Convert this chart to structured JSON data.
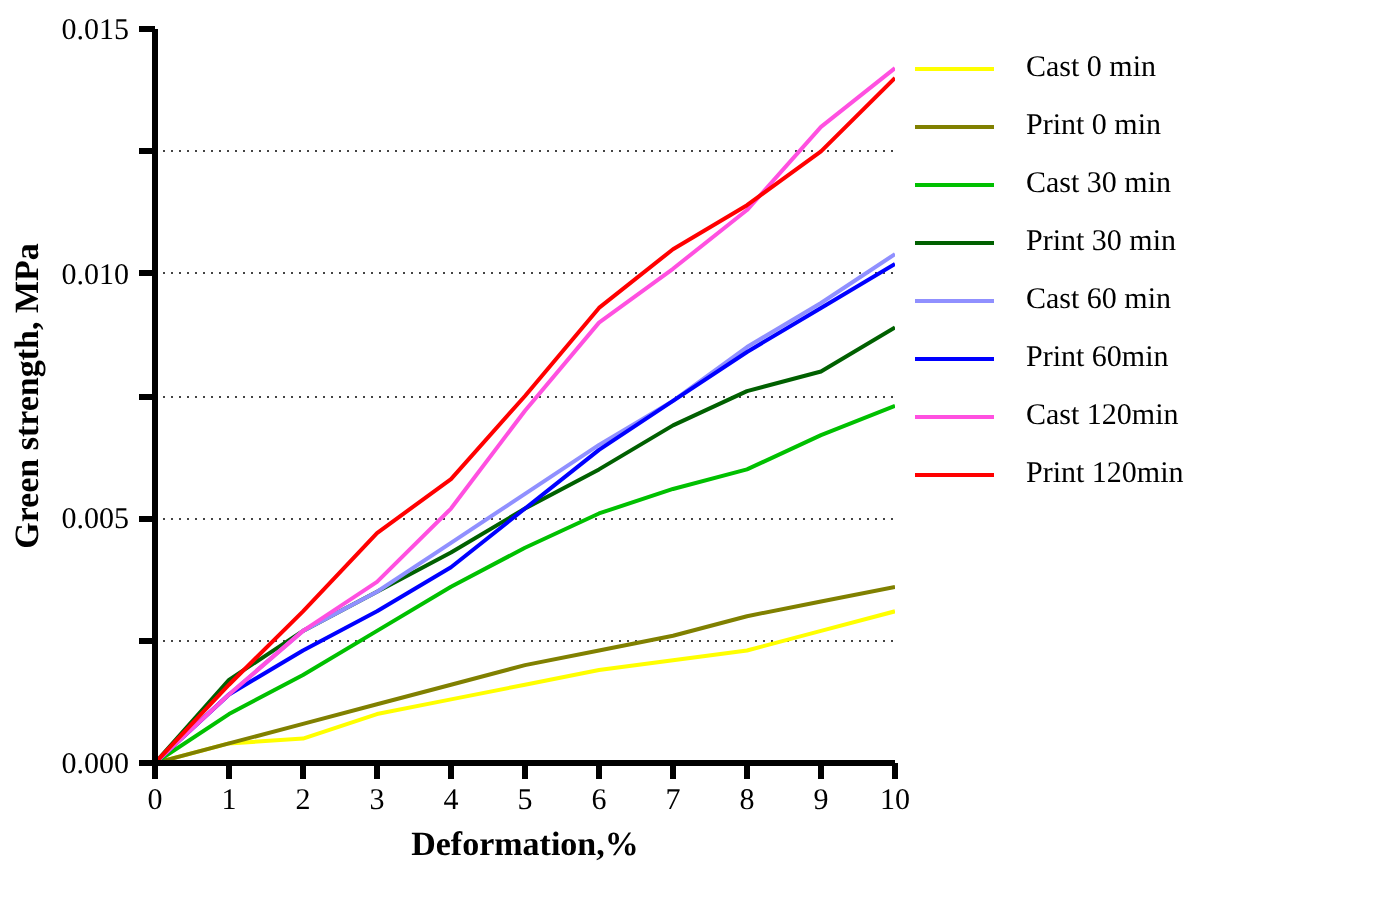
{
  "chart_data": {
    "type": "line",
    "xlabel": "Deformation,%",
    "ylabel": "Green strength, MPa",
    "x": [
      0,
      1,
      2,
      3,
      4,
      5,
      6,
      7,
      8,
      9,
      10
    ],
    "xlim": [
      0,
      10
    ],
    "xticks": [
      0,
      1,
      2,
      3,
      4,
      5,
      6,
      7,
      8,
      9,
      10
    ],
    "ylim": [
      0,
      0.015
    ],
    "yticks": [
      {
        "value": 0,
        "label": "0.000"
      },
      {
        "value": 0.0025,
        "label": null
      },
      {
        "value": 0.005,
        "label": "0.005"
      },
      {
        "value": 0.0075,
        "label": null
      },
      {
        "value": 0.01,
        "label": "0.010"
      },
      {
        "value": 0.0125,
        "label": null
      },
      {
        "value": 0.015,
        "label": "0.015"
      }
    ],
    "grid": "y",
    "legend": "right",
    "line_style": "solid",
    "marker": "none",
    "series": [
      {
        "name": "Cast 0 min",
        "color": "#ffff00",
        "values": [
          0,
          0.0004,
          0.0005,
          0.001,
          0.0013,
          0.0016,
          0.0019,
          0.0021,
          0.0023,
          0.0027,
          0.0031
        ]
      },
      {
        "name": "Print 0 min",
        "color": "#808000",
        "values": [
          0,
          0.0004,
          0.0008,
          0.0012,
          0.0016,
          0.002,
          0.0023,
          0.0026,
          0.003,
          0.0033,
          0.0036
        ]
      },
      {
        "name": "Cast 30 min",
        "color": "#00c000",
        "values": [
          0,
          0.001,
          0.0018,
          0.0027,
          0.0036,
          0.0044,
          0.0051,
          0.0056,
          0.006,
          0.0067,
          0.0073
        ]
      },
      {
        "name": "Print 30 min",
        "color": "#006000",
        "values": [
          0,
          0.0017,
          0.0027,
          0.0035,
          0.0043,
          0.0052,
          0.006,
          0.0069,
          0.0076,
          0.008,
          0.0089
        ]
      },
      {
        "name": "Cast 60 min",
        "color": "#9090ff",
        "values": [
          0,
          0.0014,
          0.0027,
          0.0035,
          0.0045,
          0.0055,
          0.0065,
          0.0074,
          0.0085,
          0.0094,
          0.0104
        ]
      },
      {
        "name": "Print 60min",
        "color": "#0000ff",
        "values": [
          0,
          0.0014,
          0.0023,
          0.0031,
          0.004,
          0.0052,
          0.0064,
          0.0074,
          0.0084,
          0.0093,
          0.0102
        ]
      },
      {
        "name": "Cast 120min",
        "color": "#ff50e0",
        "values": [
          0,
          0.0014,
          0.0027,
          0.0037,
          0.0052,
          0.0072,
          0.009,
          0.0101,
          0.0113,
          0.013,
          0.0142
        ]
      },
      {
        "name": "Print 120min",
        "color": "#ff0000",
        "values": [
          0,
          0.0016,
          0.0031,
          0.0047,
          0.0058,
          0.0075,
          0.0093,
          0.0105,
          0.0114,
          0.0125,
          0.014
        ]
      }
    ]
  }
}
